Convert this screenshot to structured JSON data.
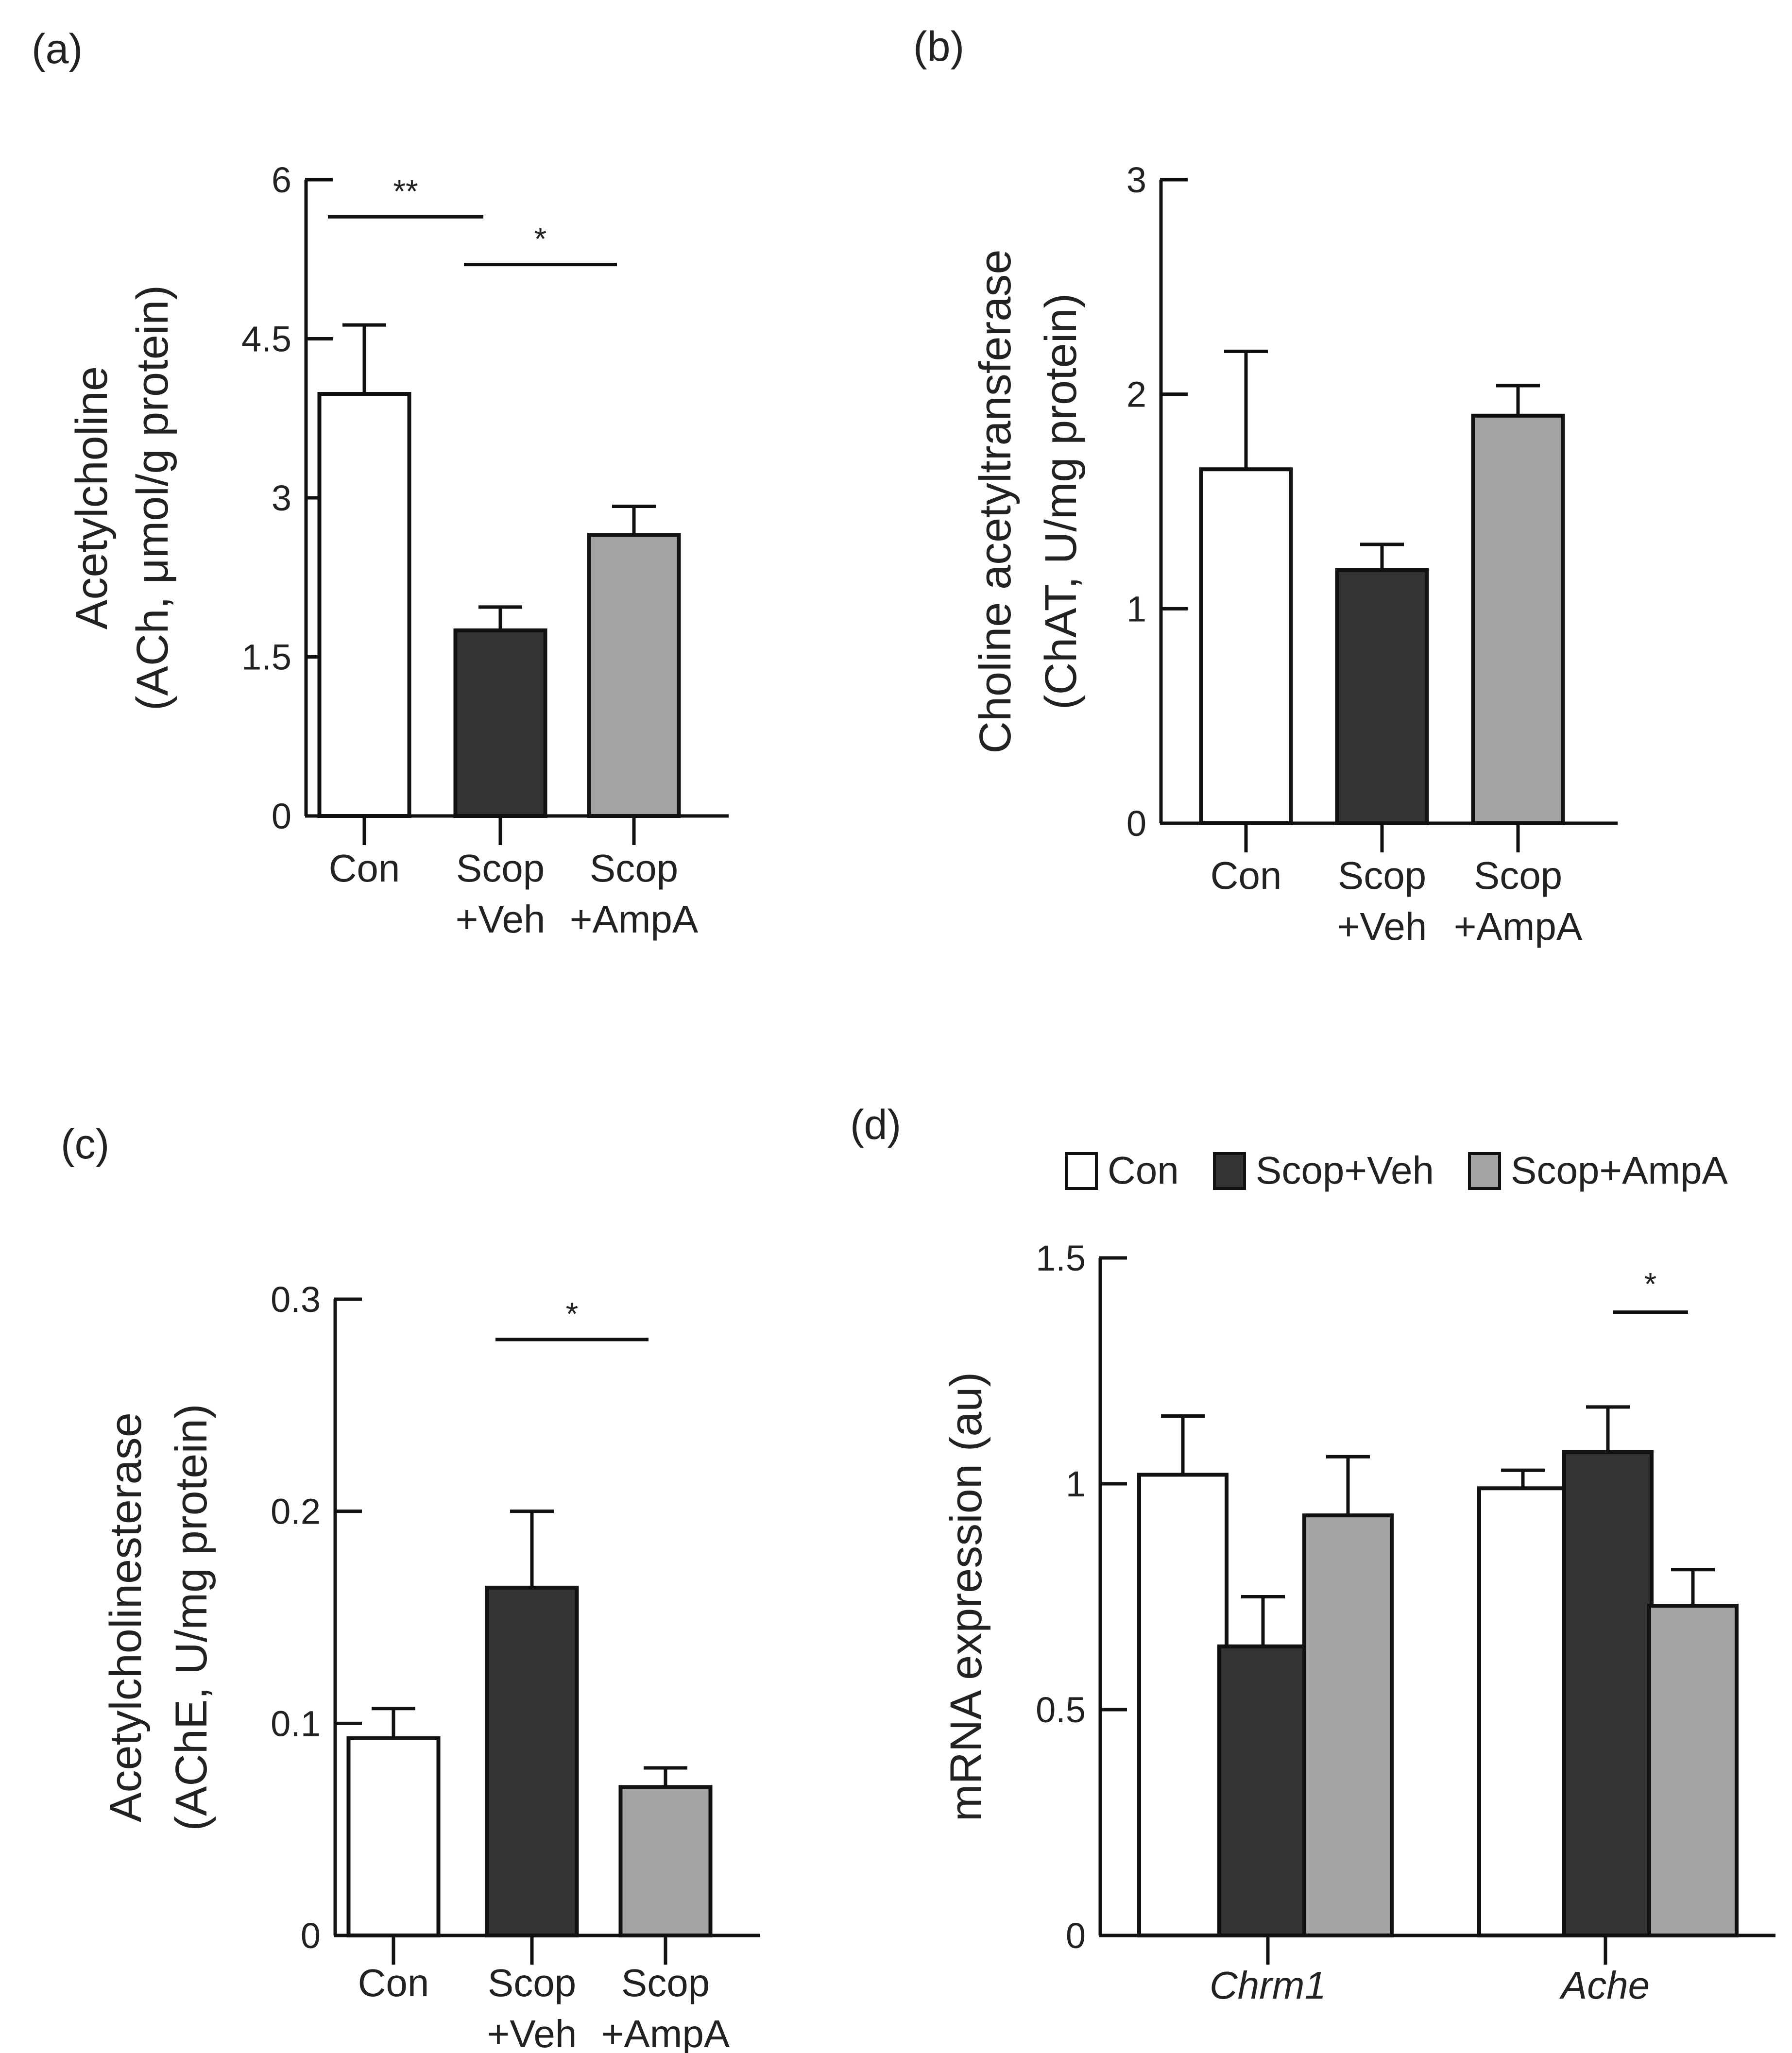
{
  "colors": {
    "con": "#ffffff",
    "veh": "#333333",
    "ampa": "#a3a3a6",
    "stroke": "#111111"
  },
  "chart_data": [
    {
      "panel": "(a)",
      "type": "bar",
      "categories": [
        [
          "Con"
        ],
        [
          "Scop",
          "+Veh"
        ],
        [
          "Scop",
          "+AmpA"
        ]
      ],
      "values": [
        3.98,
        1.75,
        2.65
      ],
      "errors": [
        0.65,
        0.22,
        0.27
      ],
      "ylabel_lines": [
        "Acetylcholine",
        "(ACh, μmol/g protein)"
      ],
      "ylim": [
        0,
        6
      ],
      "yticks": [
        0,
        1.5,
        3,
        4.5,
        6
      ],
      "ytick_labels": [
        "0",
        "1.5",
        "3",
        "4.5",
        "6"
      ],
      "significance": [
        {
          "from": 0,
          "to": 1,
          "y": 5.65,
          "label": "**"
        },
        {
          "from": 1,
          "to": 2,
          "y": 5.2,
          "label": "*"
        }
      ]
    },
    {
      "panel": "(b)",
      "type": "bar",
      "categories": [
        [
          "Con"
        ],
        [
          "Scop",
          "+Veh"
        ],
        [
          "Scop",
          "+AmpA"
        ]
      ],
      "values": [
        1.65,
        1.18,
        1.9
      ],
      "errors": [
        0.55,
        0.12,
        0.14
      ],
      "ylabel_lines": [
        "Choline acetyltransferase",
        "(ChAT, U/mg protein)"
      ],
      "ylim": [
        0,
        3
      ],
      "yticks": [
        0,
        1,
        2,
        3
      ],
      "ytick_labels": [
        "0",
        "1",
        "2",
        "3"
      ],
      "significance": []
    },
    {
      "panel": "(c)",
      "type": "bar",
      "categories": [
        [
          "Con"
        ],
        [
          "Scop",
          "+Veh"
        ],
        [
          "Scop",
          "+AmpA"
        ]
      ],
      "values": [
        0.093,
        0.164,
        0.07
      ],
      "errors": [
        0.014,
        0.036,
        0.009
      ],
      "ylabel_lines": [
        "Acetylcholinesterase",
        "(AChE, U/mg protein)"
      ],
      "ylim": [
        0,
        0.3
      ],
      "yticks": [
        0,
        0.1,
        0.2,
        0.3
      ],
      "ytick_labels": [
        "0",
        "0.1",
        "0.2",
        "0.3"
      ],
      "significance": [
        {
          "from": 1,
          "to": 2,
          "y": 0.281,
          "label": "*"
        }
      ]
    },
    {
      "panel": "(d)",
      "type": "grouped-bar",
      "groups": [
        "Chrm1",
        "Ache"
      ],
      "series": [
        {
          "name": "Con",
          "values": [
            1.02,
            0.99
          ],
          "errors": [
            0.13,
            0.04
          ]
        },
        {
          "name": "Scop+Veh",
          "values": [
            0.64,
            1.07
          ],
          "errors": [
            0.11,
            0.1
          ]
        },
        {
          "name": "Scop+AmpA",
          "values": [
            0.93,
            0.73
          ],
          "errors": [
            0.13,
            0.08
          ]
        }
      ],
      "ylabel_lines": [
        "mRNA expression (au)"
      ],
      "ylim": [
        0,
        1.5
      ],
      "yticks": [
        0,
        0.5,
        1,
        1.5
      ],
      "ytick_labels": [
        "0",
        "0.5",
        "1",
        "1.5"
      ],
      "legend_position": "top",
      "significance": [
        {
          "group": 1,
          "from": 1,
          "to": 2,
          "y": 1.38,
          "label": "*"
        }
      ]
    }
  ]
}
